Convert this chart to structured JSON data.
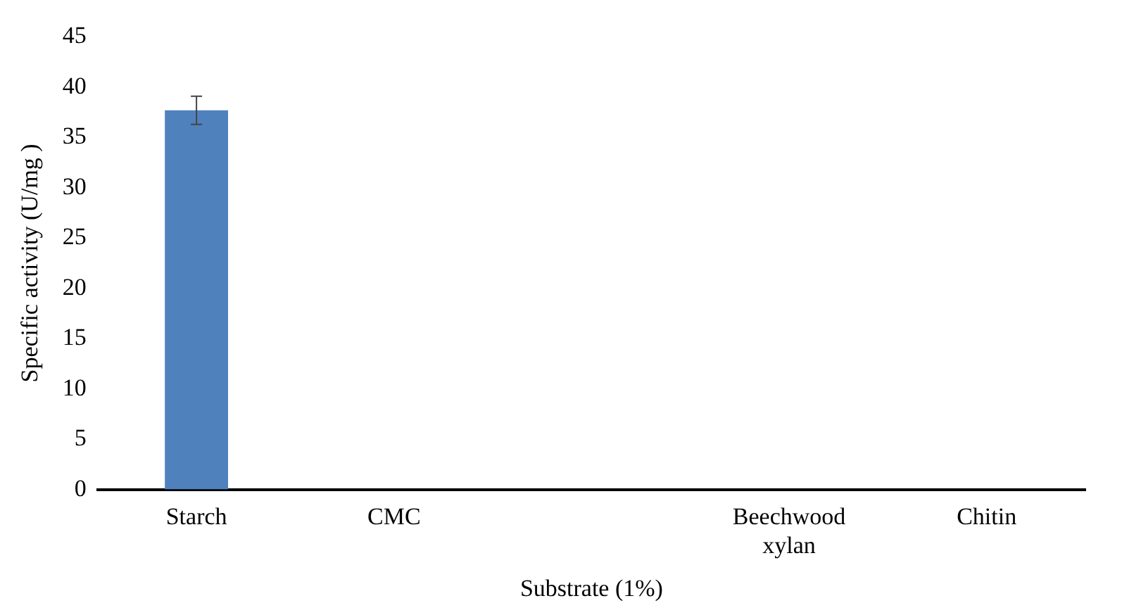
{
  "chart_data": {
    "type": "bar",
    "xlabel": "Substrate (1%)",
    "ylabel": "Specific activity (U/mg )",
    "categories": [
      "Starch",
      "CMC",
      null,
      "Beechwood xylan",
      "Chitin"
    ],
    "values": [
      37.7,
      0,
      0,
      0,
      0
    ],
    "errors": [
      1.4,
      null,
      null,
      null,
      null
    ],
    "color": "#4f81bd",
    "ylim": [
      0,
      45
    ],
    "yticks": [
      0,
      5,
      10,
      15,
      20,
      25,
      30,
      35,
      40,
      45
    ],
    "grid": false,
    "legend": false
  }
}
